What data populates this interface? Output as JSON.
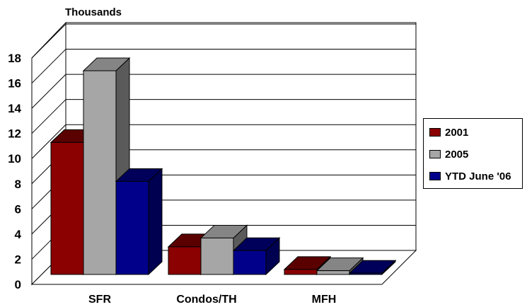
{
  "chart_data": {
    "type": "bar",
    "ylabel": "Thousands",
    "categories": [
      "SFR",
      "Condos/TH",
      "MFH"
    ],
    "series": [
      {
        "name": "2001",
        "values": [
          10.5,
          2.2,
          0.4
        ],
        "color": "#8b0000",
        "top_color": "#5a0000",
        "side_color": "#4a0000"
      },
      {
        "name": "2005",
        "values": [
          16.2,
          2.9,
          0.3
        ],
        "color": "#a6a6a6",
        "top_color": "#858585",
        "side_color": "#5a5a5a"
      },
      {
        "name": "YTD June '06",
        "values": [
          7.4,
          1.9,
          0.1
        ],
        "color": "#00008b",
        "top_color": "#00005a",
        "side_color": "#000050"
      }
    ],
    "ylim": [
      0,
      18
    ],
    "yticks": [
      0,
      2,
      4,
      6,
      8,
      10,
      12,
      14,
      16,
      18
    ],
    "grid": true,
    "legend_position": "right"
  }
}
